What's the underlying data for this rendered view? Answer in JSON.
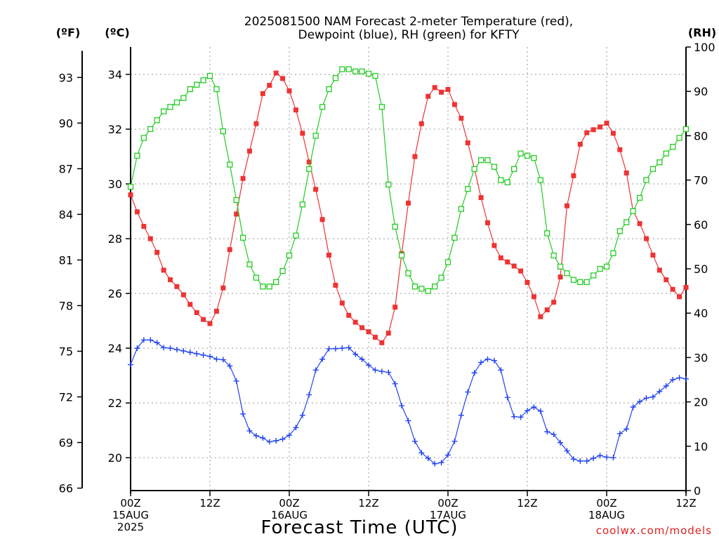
{
  "chart_data": {
    "type": "line",
    "title_line1": "2025081500 NAM Forecast 2-meter Temperature (red),",
    "title_line2": "Dewpoint (blue), RH (green) for KFTY",
    "xlabel": "Forecast Time (UTC)",
    "watermark": "coolwx.com/models",
    "left_axis_f_label": "(ºF)",
    "left_axis_c_label": "(ºC)",
    "right_axis_label": "(RH)",
    "celsius_range": [
      18.8,
      35
    ],
    "rh_range": [
      0,
      100
    ],
    "hour_range": [
      0,
      84
    ],
    "step_hours": 1,
    "grid": true,
    "celsius_ticks": [
      "20",
      "22",
      "24",
      "26",
      "28",
      "30",
      "32",
      "34"
    ],
    "fahrenheit_ticks": [
      "66",
      "69",
      "72",
      "75",
      "78",
      "81",
      "84",
      "87",
      "90",
      "93"
    ],
    "rh_ticks": [
      "0",
      "10",
      "20",
      "30",
      "40",
      "50",
      "60",
      "70",
      "80",
      "90",
      "100"
    ],
    "x_ticks": [
      {
        "hour": 0,
        "label": "00Z",
        "date": "15AUG",
        "year": "2025"
      },
      {
        "hour": 12,
        "label": "12Z",
        "date": "",
        "year": ""
      },
      {
        "hour": 24,
        "label": "00Z",
        "date": "16AUG",
        "year": ""
      },
      {
        "hour": 36,
        "label": "12Z",
        "date": "",
        "year": ""
      },
      {
        "hour": 48,
        "label": "00Z",
        "date": "17AUG",
        "year": ""
      },
      {
        "hour": 60,
        "label": "12Z",
        "date": "",
        "year": ""
      },
      {
        "hour": 72,
        "label": "00Z",
        "date": "18AUG",
        "year": ""
      },
      {
        "hour": 84,
        "label": "12Z",
        "date": "",
        "year": ""
      }
    ],
    "series": [
      {
        "name": "2-meter Temperature",
        "unit": "C",
        "axis": "celsius",
        "color": "#ee3333",
        "marker": "filled-square",
        "values": [
          29.6,
          28.98,
          28.45,
          28.0,
          27.5,
          26.85,
          26.5,
          26.25,
          25.95,
          25.6,
          25.3,
          25.05,
          24.9,
          25.35,
          26.2,
          27.6,
          28.9,
          30.2,
          31.2,
          32.2,
          33.3,
          33.6,
          34.05,
          33.85,
          33.4,
          32.7,
          31.85,
          30.8,
          29.8,
          28.7,
          27.4,
          26.3,
          25.65,
          25.2,
          24.95,
          24.75,
          24.6,
          24.4,
          24.2,
          24.55,
          25.5,
          27.45,
          29.3,
          31.0,
          32.2,
          33.2,
          33.52,
          33.35,
          33.45,
          32.9,
          32.4,
          31.5,
          30.55,
          29.5,
          28.58,
          27.75,
          27.3,
          27.15,
          27.0,
          26.82,
          26.4,
          25.88,
          25.15,
          25.4,
          25.68,
          26.6,
          29.2,
          30.3,
          31.45,
          31.87,
          31.98,
          32.08,
          32.22,
          31.85,
          31.25,
          30.4,
          29.0,
          28.55,
          28.0,
          27.4,
          26.85,
          26.5,
          26.15,
          25.88,
          26.22
        ]
      },
      {
        "name": "Dewpoint",
        "unit": "C",
        "axis": "celsius",
        "color": "#2244ee",
        "marker": "plus",
        "values": [
          23.4,
          24.0,
          24.3,
          24.3,
          24.2,
          24.02,
          24.0,
          23.95,
          23.9,
          23.85,
          23.8,
          23.75,
          23.7,
          23.6,
          23.58,
          23.35,
          22.8,
          21.6,
          20.98,
          20.8,
          20.72,
          20.58,
          20.62,
          20.68,
          20.82,
          21.1,
          21.55,
          22.3,
          23.2,
          23.6,
          23.98,
          23.98,
          24.0,
          24.02,
          23.78,
          23.6,
          23.38,
          23.2,
          23.15,
          23.12,
          22.7,
          21.9,
          21.35,
          20.6,
          20.18,
          19.98,
          19.78,
          19.82,
          20.1,
          20.6,
          21.55,
          22.4,
          23.1,
          23.48,
          23.6,
          23.55,
          23.2,
          22.2,
          21.5,
          21.48,
          21.72,
          21.85,
          21.7,
          20.95,
          20.85,
          20.55,
          20.25,
          19.95,
          19.88,
          19.88,
          19.98,
          20.08,
          20.02,
          20.0,
          20.88,
          21.05,
          21.85,
          22.05,
          22.18,
          22.22,
          22.42,
          22.62,
          22.85,
          22.92,
          22.88
        ]
      },
      {
        "name": "RH",
        "unit": "%",
        "axis": "rh",
        "color": "#22cc22",
        "marker": "open-square",
        "values": [
          68.5,
          75.5,
          79.5,
          81.5,
          83.5,
          85.5,
          86.5,
          87.5,
          88.5,
          90.5,
          91.5,
          92.5,
          93.5,
          90.5,
          81.0,
          73.5,
          65.5,
          57.0,
          51.0,
          48.0,
          46.0,
          46.0,
          47.0,
          49.5,
          53.0,
          57.5,
          64.5,
          72.5,
          80.0,
          86.5,
          90.5,
          93.0,
          95.0,
          95.0,
          94.5,
          94.5,
          94.0,
          93.5,
          86.5,
          69.0,
          59.5,
          53.0,
          49.0,
          46.0,
          45.5,
          45.0,
          46.0,
          48.0,
          51.5,
          57.0,
          63.5,
          68.0,
          72.5,
          74.5,
          74.5,
          73.0,
          70.0,
          69.5,
          72.5,
          76.0,
          75.5,
          75.0,
          70.0,
          58.0,
          53.0,
          50.5,
          49.0,
          47.5,
          47.0,
          47.0,
          48.5,
          50.0,
          50.5,
          53.5,
          58.5,
          60.5,
          63.0,
          66.0,
          70.0,
          72.5,
          74.0,
          76.0,
          77.5,
          79.5,
          81.5
        ]
      }
    ]
  }
}
